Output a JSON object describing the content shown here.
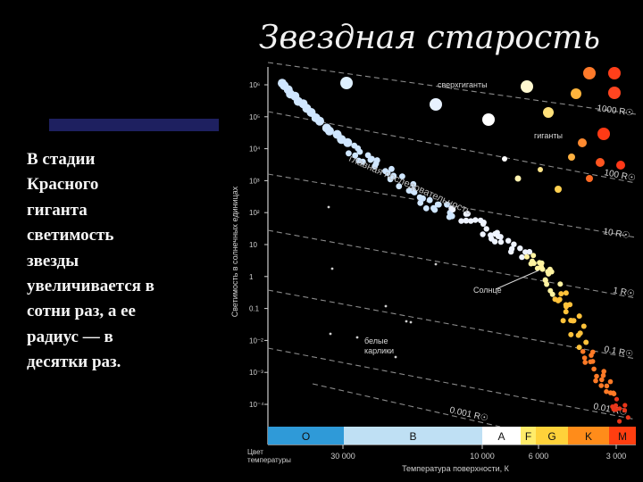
{
  "slide": {
    "title": "Звездная старость",
    "body": " В стадии\nКрасного\nгиганта\nсветимость\nзвезды\nувеличивается в\nсотни раз, а ее\nрадиус — в\nдесятки раз.",
    "accent_color": "#1e2060"
  },
  "diagram": {
    "y_axis_label": "Светимость в солнечных единицах",
    "y_ticks": [
      "10⁶",
      "10⁵",
      "10⁴",
      "10³",
      "10²",
      "10",
      "1",
      "0.1",
      "10⁻²",
      "10⁻³",
      "10⁻⁴"
    ],
    "x_axis_label": "Температура поверхности, К",
    "x_ticks": [
      "30 000",
      "10 000",
      "6 000",
      "3 000"
    ],
    "x_left_label": "Цвет\nтемпературы",
    "spectral_classes": [
      {
        "label": "O",
        "color": "#2f9ad8"
      },
      {
        "label": "B",
        "color": "#bfe0f4"
      },
      {
        "label": "A",
        "color": "#ffffff"
      },
      {
        "label": "F",
        "color": "#ffec6a"
      },
      {
        "label": "G",
        "color": "#ffd23a"
      },
      {
        "label": "K",
        "color": "#ff8c1a"
      },
      {
        "label": "M",
        "color": "#ff3e10"
      }
    ],
    "radius_lines": [
      "1000 R☉",
      "100 R☉",
      "10 R☉",
      "1 R☉",
      "0.1 R☉",
      "0.01 R☉",
      "0.001 R☉"
    ],
    "annotations": {
      "supergiants": "сверхгиганты",
      "giants": "гиганты",
      "main_sequence": "главная последовательность",
      "sun": "Солнце",
      "white_dwarfs": "белые\nкарлики"
    }
  }
}
